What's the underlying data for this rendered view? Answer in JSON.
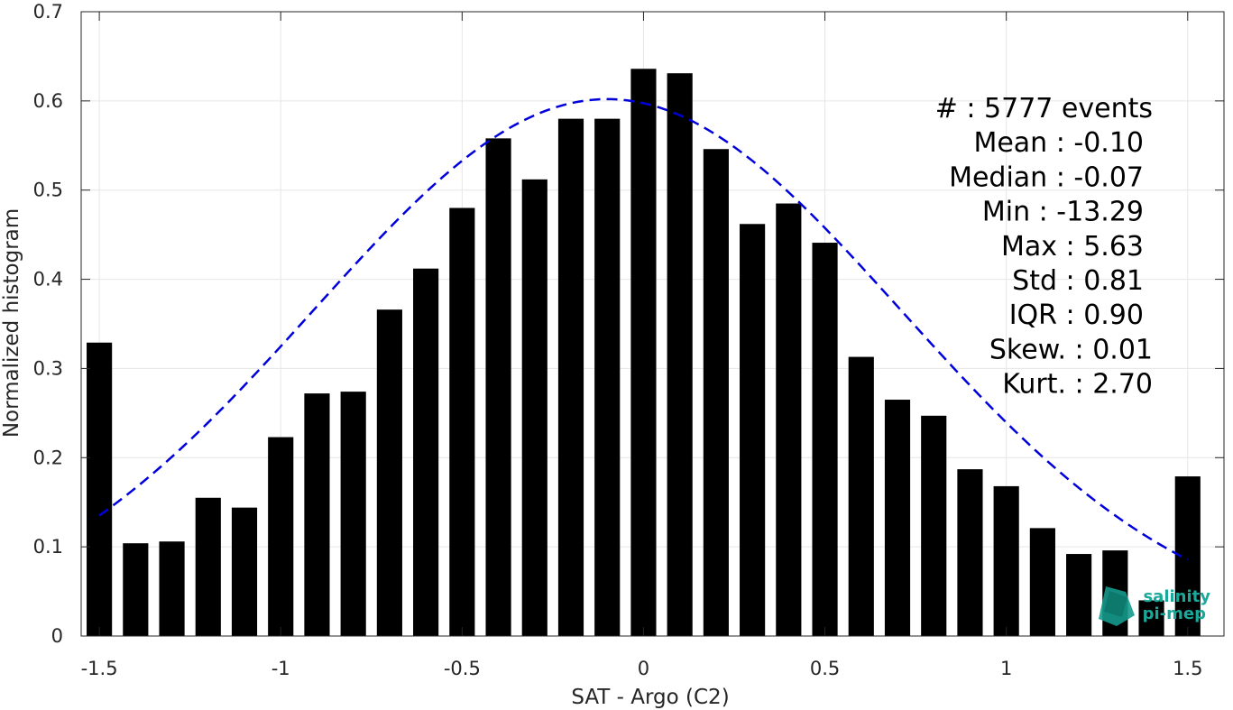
{
  "chart_data": {
    "type": "bar",
    "xlabel": "SAT - Argo (C2)",
    "ylabel": "Normalized histogram",
    "xlim": [
      -1.55,
      1.6
    ],
    "ylim": [
      0,
      0.7
    ],
    "grid": true,
    "x_ticks": [
      -1.5,
      -1,
      -0.5,
      0,
      0.5,
      1,
      1.5
    ],
    "x_tick_labels": [
      "-1.5",
      "-1",
      "-0.5",
      "0",
      "0.5",
      "1",
      "1.5"
    ],
    "y_ticks": [
      0,
      0.1,
      0.2,
      0.3,
      0.4,
      0.5,
      0.6,
      0.7
    ],
    "y_tick_labels": [
      "0",
      "0.1",
      "0.2",
      "0.3",
      "0.4",
      "0.5",
      "0.6",
      "0.7"
    ],
    "bar_color": "#000000",
    "bar_width": 0.07,
    "x": [
      -1.5,
      -1.4,
      -1.3,
      -1.2,
      -1.1,
      -1.0,
      -0.9,
      -0.8,
      -0.7,
      -0.6,
      -0.5,
      -0.4,
      -0.3,
      -0.2,
      -0.1,
      0.0,
      0.1,
      0.2,
      0.3,
      0.4,
      0.5,
      0.6,
      0.7,
      0.8,
      0.9,
      1.0,
      1.1,
      1.2,
      1.3,
      1.4,
      1.5
    ],
    "values": [
      0.329,
      0.104,
      0.106,
      0.155,
      0.144,
      0.223,
      0.272,
      0.274,
      0.366,
      0.412,
      0.48,
      0.558,
      0.512,
      0.58,
      0.58,
      0.636,
      0.631,
      0.546,
      0.462,
      0.485,
      0.441,
      0.313,
      0.265,
      0.247,
      0.187,
      0.168,
      0.121,
      0.092,
      0.096,
      0.04,
      0.179
    ],
    "fit": {
      "type": "gaussian",
      "mean": -0.1,
      "std": 0.81,
      "peak": 0.602,
      "x_range": [
        -1.5,
        1.5
      ],
      "color": "#0000dd",
      "style": "dashed"
    },
    "annotations": [
      "#  : 5777 events",
      "Mean : -0.10",
      "Median : -0.07",
      "Min : -13.29",
      "Max : 5.63",
      "Std : 0.81",
      "IQR : 0.90",
      "Skew. : 0.01",
      "Kurt. : 2.70"
    ],
    "logo": {
      "line1": "salinity",
      "line2": "pi-mep",
      "color": "#1aa89a"
    }
  }
}
